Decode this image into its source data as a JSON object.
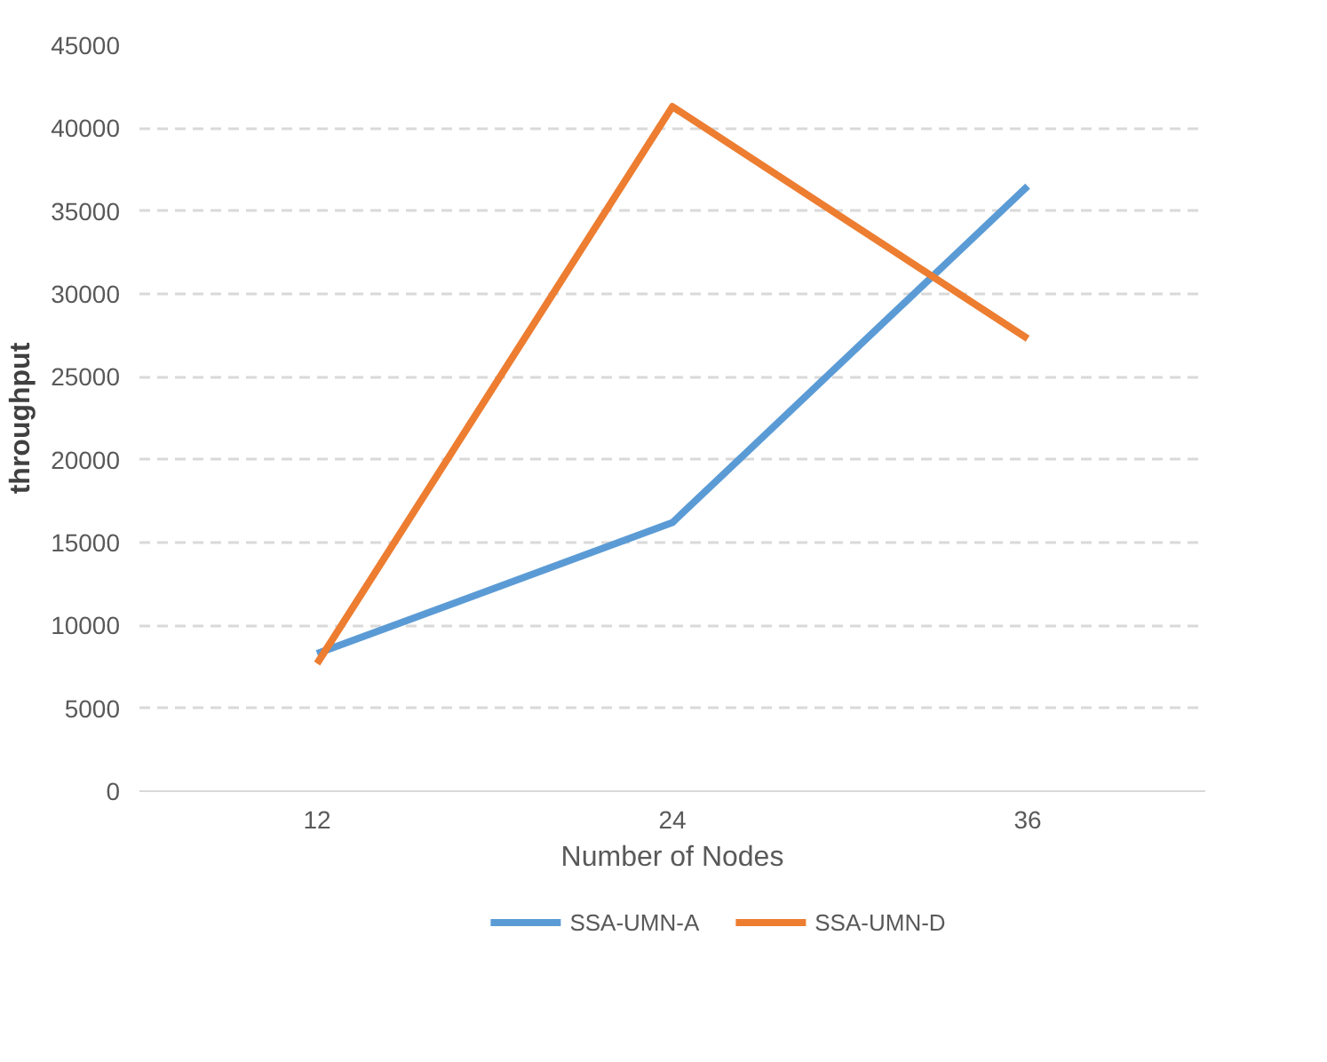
{
  "chart_data": {
    "type": "line",
    "xlabel": "Number of Nodes",
    "ylabel": "throughput",
    "categories": [
      "12",
      "24",
      "36"
    ],
    "series": [
      {
        "name": "SSA-UMN-A",
        "color": "#5b9bd5",
        "values": [
          8300,
          16200,
          36500
        ]
      },
      {
        "name": "SSA-UMN-D",
        "color": "#ed7d31",
        "values": [
          7700,
          41300,
          27300
        ]
      }
    ],
    "ylim": [
      0,
      45000
    ],
    "yticks": [
      0,
      5000,
      10000,
      15000,
      20000,
      25000,
      30000,
      35000,
      40000,
      45000
    ],
    "grid": "y",
    "legend": "bottom",
    "marker": "none",
    "line_style": "solid"
  }
}
